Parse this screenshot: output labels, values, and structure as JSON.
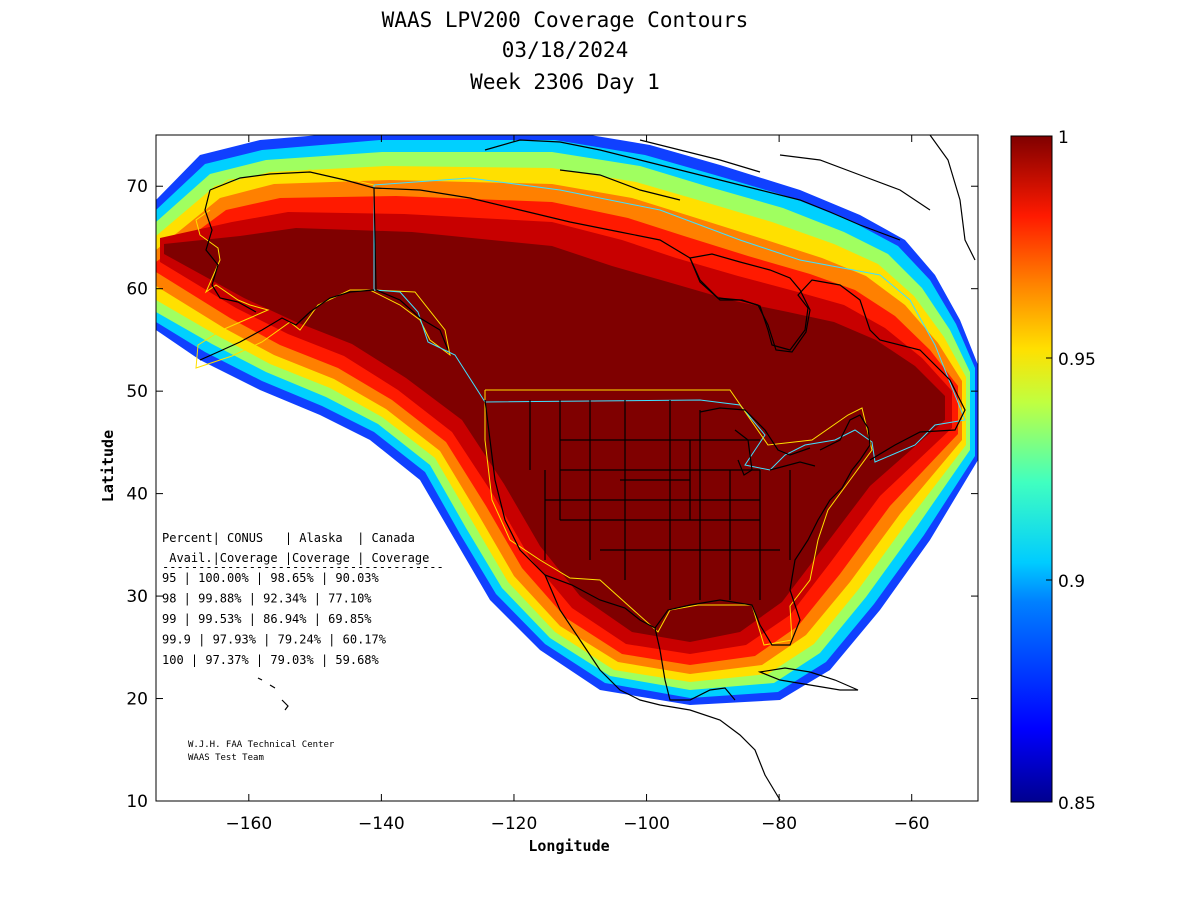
{
  "chart_data": {
    "type": "heatmap",
    "title": [
      "WAAS LPV200 Coverage Contours",
      "03/18/2024",
      "Week 2306 Day 1"
    ],
    "xlabel": "Longitude",
    "ylabel": "Latitude",
    "xlim": [
      -174,
      -50
    ],
    "ylim": [
      10,
      75
    ],
    "xticks": [
      -160,
      -140,
      -120,
      -100,
      -80,
      -60
    ],
    "yticks": [
      10,
      20,
      30,
      40,
      50,
      60,
      70
    ],
    "colorbar": {
      "range": [
        0.85,
        1
      ],
      "ticks": [
        0.85,
        0.9,
        0.95,
        1
      ],
      "tick_labels": [
        "0.85",
        "0.9",
        "0.95",
        "1"
      ],
      "colormap": "jet"
    },
    "table": {
      "header_row1": "Percent| CONUS   | Alaska  | Canada",
      "header_row2": " Avail.|Coverage |Coverage | Coverage",
      "separator": "---------------------------------------",
      "columns": [
        "Percent Avail.",
        "CONUS Coverage",
        "Alaska Coverage",
        "Canada Coverage"
      ],
      "rows": [
        {
          "avail": "95",
          "conus": "100.00%",
          "alaska": "98.65%",
          "canada": "90.03%"
        },
        {
          "avail": "98",
          "conus": "99.88%",
          "alaska": "92.34%",
          "canada": "77.10%"
        },
        {
          "avail": "99",
          "conus": "99.53%",
          "alaska": "86.94%",
          "canada": "69.85%"
        },
        {
          "avail": "99.9",
          "conus": "97.93%",
          "alaska": "79.24%",
          "canada": "60.17%"
        },
        {
          "avail": "100",
          "conus": "97.37%",
          "alaska": "79.03%",
          "canada": "59.68%"
        }
      ]
    },
    "credit": [
      "W.J.H. FAA Technical Center",
      "WAAS Test Team"
    ]
  },
  "colors": {
    "dark_red": "#7f0000",
    "red": "#c80000",
    "bright_red": "#ff1a00",
    "orange": "#ff8000",
    "yellow": "#ffe000",
    "green": "#a0ff60",
    "cyan": "#00d0ff",
    "blue": "#0040ff",
    "navy": "#00008f"
  }
}
